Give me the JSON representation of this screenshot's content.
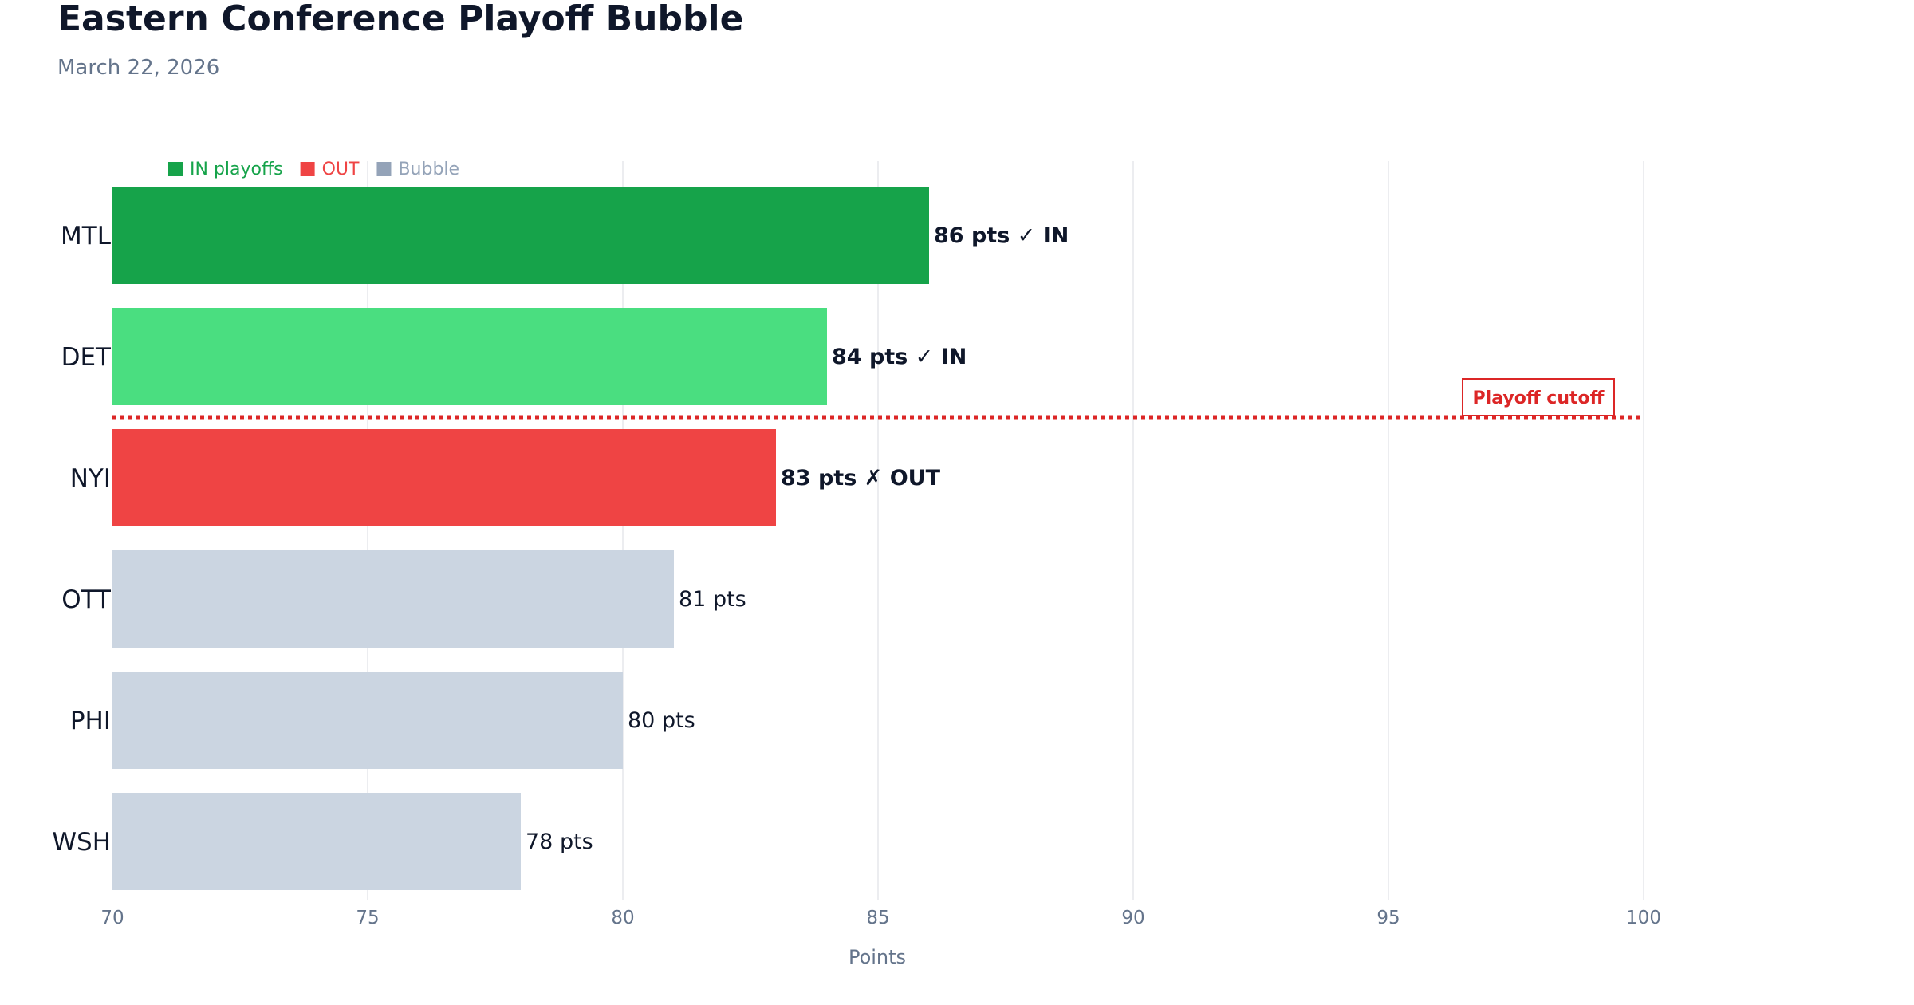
{
  "title": "Eastern Conference Playoff Bubble",
  "subtitle": "March 22, 2026",
  "colors": {
    "in_top": "#16a34a",
    "in": "#4ade80",
    "out": "#ef4444",
    "bubble": "#cbd5e1",
    "bubble_legend": "#94a3b8",
    "cutoff": "#dc2626",
    "grid": "#e5e7eb"
  },
  "chart_data": {
    "type": "bar",
    "orientation": "horizontal",
    "categories": [
      "MTL",
      "DET",
      "NYI",
      "OTT",
      "PHI",
      "WSH"
    ],
    "values": [
      86,
      84,
      83,
      81,
      80,
      78
    ],
    "status": [
      "IN",
      "IN",
      "OUT",
      "Bubble",
      "Bubble",
      "Bubble"
    ],
    "data_labels": [
      "86 pts ✓ IN",
      "84 pts ✓ IN",
      "83 pts ✗ OUT",
      "81 pts",
      "80 pts",
      "78 pts"
    ],
    "xlabel": "Points",
    "xlim": [
      70,
      100
    ],
    "xticks": [
      "70",
      "75",
      "80",
      "85",
      "90",
      "95",
      "100"
    ],
    "grid": "vertical",
    "legend": {
      "placement": "top-left",
      "entries": [
        {
          "label": "IN playoffs",
          "color": "#16a34a"
        },
        {
          "label": "OUT",
          "color": "#ef4444"
        },
        {
          "label": "Bubble",
          "color": "#94a3b8"
        }
      ]
    },
    "annotation": {
      "label": "Playoff cutoff",
      "between": [
        "DET",
        "NYI"
      ],
      "style": "dotted"
    }
  }
}
